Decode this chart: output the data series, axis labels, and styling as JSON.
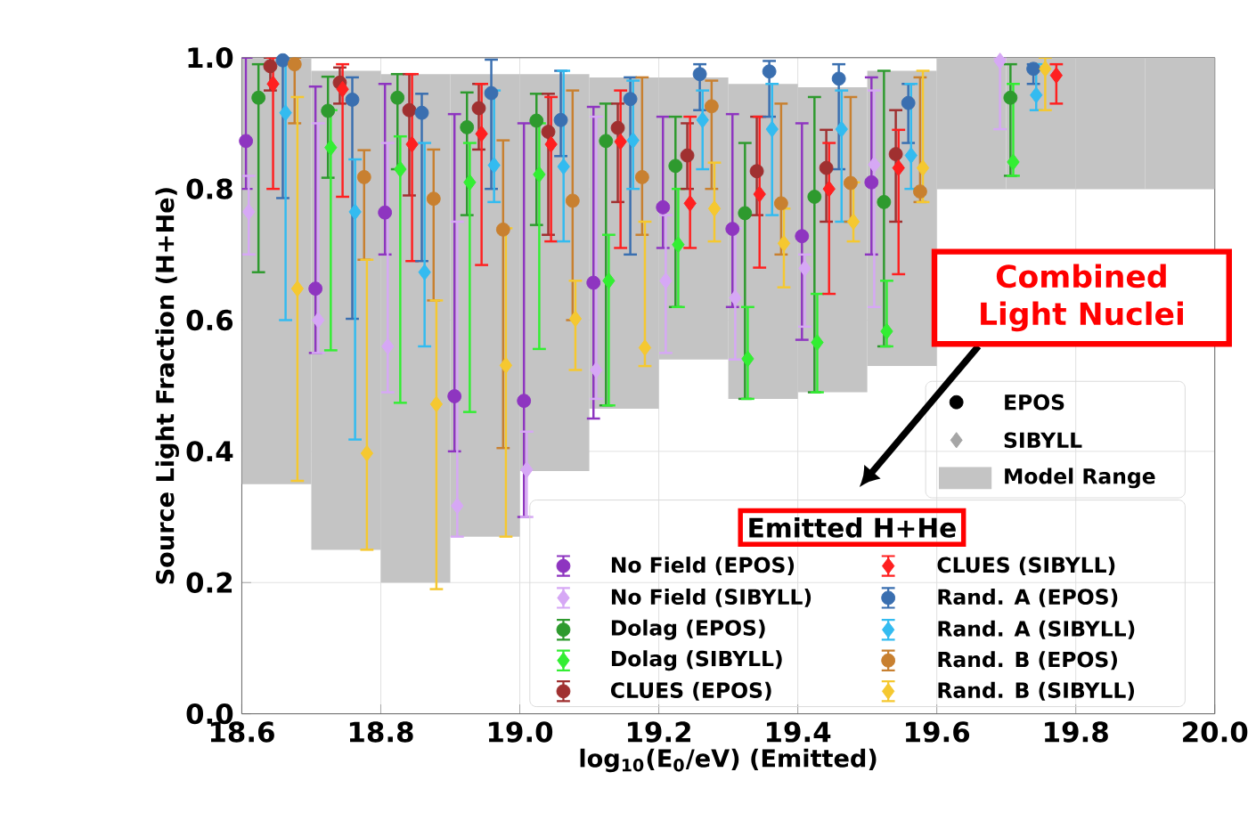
{
  "chart_data": {
    "type": "scatter",
    "xlabel": "log$_{10}$(E$_{0}$/eV) (Emitted)",
    "ylabel": "Source Light Fraction (H+He)",
    "legend_title": "Emitted H+He",
    "legend": "bottom right",
    "grid": true,
    "xlim": [
      18.6,
      20.0
    ],
    "ylim": [
      0.0,
      1.0
    ],
    "xticks": [
      {
        "value": 18.6,
        "label": "18.6"
      },
      {
        "value": 18.8,
        "label": "18.8"
      },
      {
        "value": 19.0,
        "label": "19.0"
      },
      {
        "value": 19.2,
        "label": "19.2"
      },
      {
        "value": 19.4,
        "label": "19.4"
      },
      {
        "value": 19.6,
        "label": "19.6"
      },
      {
        "value": 19.8,
        "label": "19.8"
      },
      {
        "value": 20.0,
        "label": "20.0"
      }
    ],
    "yticks": [
      {
        "value": 0.0,
        "label": "0.0"
      },
      {
        "value": 0.2,
        "label": "0.2"
      },
      {
        "value": 0.4,
        "label": "0.4"
      },
      {
        "value": 0.6,
        "label": "0.6"
      },
      {
        "value": 0.8,
        "label": "0.8"
      },
      {
        "value": 1.0,
        "label": "1.0"
      }
    ],
    "annotations": [
      "Combined Light Nuclei",
      "EPOS",
      "SIBYLL"
    ],
    "series": [
      {
        "type": "bar",
        "name": "Model Range",
        "color": "#c4c4c4",
        "x": [
          18.65,
          18.75,
          18.85,
          18.95,
          19.05,
          19.15,
          19.25,
          19.35,
          19.45,
          19.55,
          19.65,
          19.75,
          19.85,
          19.95
        ],
        "base": [
          0.35,
          0.25,
          0.2,
          0.27,
          0.37,
          0.465,
          0.54,
          0.48,
          0.49,
          0.53,
          0.8,
          0.8,
          0.8,
          0.8
        ],
        "values": [
          0.65,
          0.73,
          0.775,
          0.705,
          0.605,
          0.505,
          0.43,
          0.48,
          0.465,
          0.45,
          0.2,
          0.2,
          0.2,
          0.2
        ]
      },
      {
        "name": "No Field (EPOS)",
        "color": "#8e35c0",
        "marker": "circle",
        "x": [
          18.606,
          18.706,
          18.806,
          18.906,
          19.006,
          19.106,
          19.206,
          19.306,
          19.406,
          19.506,
          null
        ],
        "values": [
          0.873,
          0.648,
          0.764,
          0.484,
          0.477,
          0.657,
          0.772,
          0.739,
          0.728,
          0.81,
          null
        ],
        "errors": [
          [
            0.8,
            1.0
          ],
          [
            0.55,
            0.956
          ],
          [
            0.7,
            0.96
          ],
          [
            0.4,
            0.914
          ],
          [
            0.3,
            0.9
          ],
          [
            0.45,
            0.925
          ],
          [
            0.71,
            0.91
          ],
          [
            0.62,
            0.914
          ],
          [
            0.57,
            0.9
          ],
          [
            0.7,
            0.97
          ],
          null
        ]
      },
      {
        "name": "No Field (SIBYLL)",
        "color": "#d6a8f5",
        "marker": "diamond",
        "x": [
          18.61,
          18.71,
          18.81,
          18.91,
          19.01,
          19.11,
          19.21,
          19.31,
          19.41,
          19.51,
          19.691
        ],
        "values": [
          0.765,
          0.6,
          0.56,
          0.317,
          0.372,
          0.524,
          0.66,
          0.634,
          0.679,
          0.837,
          0.995
        ],
        "errors": [
          [
            0.7,
            0.82
          ],
          [
            0.55,
            0.9
          ],
          [
            0.49,
            0.87
          ],
          [
            0.27,
            0.75
          ],
          [
            0.3,
            0.43
          ],
          [
            0.48,
            0.91
          ],
          [
            0.55,
            0.76
          ],
          [
            0.54,
            0.74
          ],
          [
            0.59,
            0.7
          ],
          [
            0.62,
            0.95
          ],
          [
            0.891,
            1.0
          ]
        ]
      },
      {
        "name": "Dolag (EPOS)",
        "color": "#2e9a2e",
        "marker": "circle",
        "x": [
          18.624,
          18.724,
          18.824,
          18.924,
          19.024,
          19.124,
          19.224,
          19.324,
          19.424,
          19.524,
          19.706
        ],
        "values": [
          0.939,
          0.919,
          0.939,
          0.894,
          0.904,
          0.873,
          0.835,
          0.763,
          0.788,
          0.78,
          0.939
        ],
        "errors": [
          [
            0.673,
            0.99
          ],
          [
            0.817,
            0.971
          ],
          [
            0.83,
            0.975
          ],
          [
            0.76,
            0.947
          ],
          [
            0.745,
            0.945
          ],
          [
            0.47,
            0.93
          ],
          [
            0.62,
            0.91
          ],
          [
            0.48,
            0.87
          ],
          [
            0.49,
            0.94
          ],
          [
            0.56,
            0.98
          ],
          [
            0.82,
            0.99
          ]
        ]
      },
      {
        "name": "Dolag (SIBYLL)",
        "color": "#33ee33",
        "marker": "diamond",
        "x": [
          null,
          18.728,
          18.828,
          18.928,
          19.028,
          19.128,
          19.228,
          19.328,
          19.428,
          19.528,
          19.71
        ],
        "values": [
          null,
          0.863,
          0.83,
          0.81,
          0.822,
          0.66,
          0.715,
          0.541,
          0.566,
          0.583,
          0.841
        ],
        "errors": [
          null,
          [
            0.554,
            0.92
          ],
          [
            0.474,
            0.88
          ],
          [
            0.46,
            0.87
          ],
          [
            0.556,
            0.9
          ],
          [
            0.47,
            0.73
          ],
          [
            0.62,
            0.8
          ],
          [
            0.48,
            0.62
          ],
          [
            0.49,
            0.64
          ],
          [
            0.56,
            0.66
          ],
          [
            0.82,
            0.96
          ]
        ]
      },
      {
        "name": "CLUES (EPOS)",
        "color": "#a03030",
        "marker": "circle",
        "x": [
          18.641,
          18.741,
          18.841,
          18.941,
          19.041,
          19.141,
          19.241,
          19.341,
          19.441,
          19.541,
          null
        ],
        "values": [
          0.987,
          0.962,
          0.92,
          0.923,
          0.887,
          0.893,
          0.851,
          0.827,
          0.832,
          0.853,
          null
        ],
        "errors": [
          [
            0.95,
            1.0
          ],
          [
            0.93,
            0.985
          ],
          [
            0.79,
            0.975
          ],
          [
            0.86,
            0.96
          ],
          [
            0.73,
            0.945
          ],
          [
            0.78,
            0.93
          ],
          [
            0.8,
            0.9
          ],
          [
            0.76,
            0.91
          ],
          [
            0.75,
            0.89
          ],
          [
            0.75,
            0.92
          ],
          null
        ]
      },
      {
        "name": "CLUES (SIBYLL)",
        "color": "#ff2020",
        "marker": "diamond",
        "x": [
          18.645,
          18.745,
          18.845,
          18.945,
          19.045,
          19.145,
          19.245,
          19.345,
          19.445,
          19.545,
          19.772
        ],
        "values": [
          0.96,
          0.952,
          0.868,
          0.884,
          0.868,
          0.872,
          0.778,
          0.792,
          0.8,
          0.832,
          0.973
        ],
        "errors": [
          [
            0.8,
            1.0
          ],
          [
            0.788,
            0.99
          ],
          [
            0.69,
            0.975
          ],
          [
            0.684,
            0.96
          ],
          [
            0.72,
            0.94
          ],
          [
            0.71,
            0.95
          ],
          [
            0.71,
            0.91
          ],
          [
            0.68,
            0.91
          ],
          [
            0.64,
            0.87
          ],
          [
            0.67,
            0.89
          ],
          [
            0.93,
            0.99
          ]
        ]
      },
      {
        "name": "Rand. A (EPOS)",
        "color": "#3a6fb0",
        "marker": "circle",
        "x": [
          18.659,
          18.759,
          18.859,
          18.959,
          19.059,
          19.159,
          19.259,
          19.359,
          19.459,
          19.559,
          19.739
        ],
        "values": [
          0.996,
          0.936,
          0.916,
          0.946,
          0.905,
          0.937,
          0.975,
          0.979,
          0.968,
          0.931,
          0.983
        ],
        "errors": [
          [
            0.786,
            1.0
          ],
          [
            0.602,
            0.97
          ],
          [
            0.69,
            0.945
          ],
          [
            0.8,
            0.997
          ],
          [
            0.85,
            0.98
          ],
          [
            0.7,
            0.97
          ],
          [
            0.92,
            0.99
          ],
          [
            0.91,
            0.995
          ],
          [
            0.83,
            0.99
          ],
          [
            0.87,
            0.96
          ],
          [
            0.96,
            0.99
          ]
        ]
      },
      {
        "name": "Rand. A (SIBYLL)",
        "color": "#33bbf0",
        "marker": "diamond",
        "x": [
          18.663,
          18.763,
          18.863,
          18.963,
          19.063,
          19.163,
          19.263,
          19.363,
          19.463,
          19.563,
          19.743
        ],
        "values": [
          0.916,
          0.765,
          0.673,
          0.836,
          0.834,
          0.874,
          0.905,
          0.891,
          0.891,
          0.851,
          0.943
        ],
        "errors": [
          [
            0.6,
            1.0
          ],
          [
            0.418,
            0.845
          ],
          [
            0.56,
            0.87
          ],
          [
            0.78,
            0.95
          ],
          [
            0.72,
            0.98
          ],
          [
            0.8,
            0.965
          ],
          [
            0.83,
            0.95
          ],
          [
            0.76,
            0.96
          ],
          [
            0.75,
            0.95
          ],
          [
            0.8,
            0.96
          ],
          [
            0.92,
            0.99
          ]
        ]
      },
      {
        "name": "Rand. B (EPOS)",
        "color": "#c88030",
        "marker": "circle",
        "x": [
          18.676,
          18.776,
          18.876,
          18.976,
          19.076,
          19.176,
          19.276,
          19.376,
          19.476,
          19.576,
          null
        ],
        "values": [
          0.99,
          0.818,
          0.785,
          0.738,
          0.782,
          0.818,
          0.926,
          0.778,
          0.809,
          0.796,
          null
        ],
        "errors": [
          [
            0.9,
            1.0
          ],
          [
            0.692,
            0.859
          ],
          [
            0.63,
            0.86
          ],
          [
            0.405,
            0.874
          ],
          [
            0.6,
            0.95
          ],
          [
            0.73,
            0.97
          ],
          [
            0.8,
            0.965
          ],
          [
            0.7,
            0.93
          ],
          [
            0.75,
            0.94
          ],
          [
            0.78,
            0.97
          ],
          null
        ]
      },
      {
        "name": "Rand. B (SIBYLL)",
        "color": "#f5c830",
        "marker": "diamond",
        "x": [
          18.68,
          18.78,
          18.88,
          18.98,
          19.08,
          19.18,
          19.28,
          19.38,
          19.48,
          19.58,
          19.756
        ],
        "values": [
          0.648,
          0.397,
          0.472,
          0.531,
          0.602,
          0.558,
          0.77,
          0.717,
          0.75,
          0.832,
          0.983
        ],
        "errors": [
          [
            0.355,
            0.94
          ],
          [
            0.25,
            0.692
          ],
          [
            0.19,
            0.63
          ],
          [
            0.27,
            0.74
          ],
          [
            0.524,
            0.66
          ],
          [
            0.53,
            0.75
          ],
          [
            0.72,
            0.84
          ],
          [
            0.65,
            0.77
          ],
          [
            0.72,
            0.81
          ],
          [
            0.78,
            0.98
          ],
          [
            0.92,
            1.0
          ]
        ]
      }
    ]
  }
}
